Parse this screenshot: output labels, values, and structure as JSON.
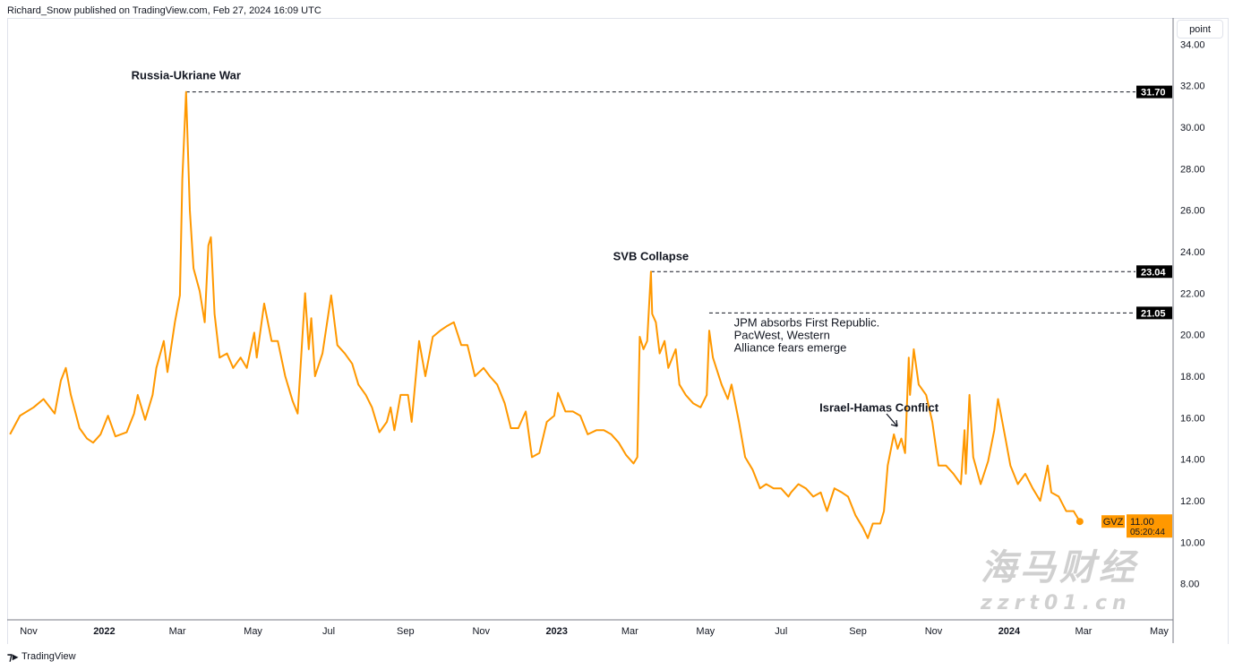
{
  "header": {
    "published": "Richard_Snow published on TradingView.com, Feb 27, 2024 16:09 UTC"
  },
  "footer": {
    "brand": "TradingView",
    "logo_icon": "tradingview-logo-icon"
  },
  "scale_button": "point",
  "watermark": {
    "logo_text": "海马财经",
    "site": "zzrt01.cn"
  },
  "colors": {
    "line": "#ff9800",
    "level_label_bg": "#000000",
    "price_label_bg": "#ff9800"
  },
  "chart_data": {
    "type": "line",
    "series": [
      {
        "name": "GVZ",
        "points": [
          [
            "2021-10-17",
            15.2
          ],
          [
            "2021-10-25",
            16.1
          ],
          [
            "2021-11-05",
            16.5
          ],
          [
            "2021-11-13",
            16.9
          ],
          [
            "2021-11-22",
            16.2
          ],
          [
            "2021-11-27",
            17.8
          ],
          [
            "2021-12-01",
            18.4
          ],
          [
            "2021-12-05",
            17.1
          ],
          [
            "2021-12-12",
            15.5
          ],
          [
            "2021-12-18",
            15.0
          ],
          [
            "2021-12-23",
            14.8
          ],
          [
            "2021-12-29",
            15.2
          ],
          [
            "2022-01-04",
            16.1
          ],
          [
            "2022-01-10",
            15.1
          ],
          [
            "2022-01-19",
            15.3
          ],
          [
            "2022-01-25",
            16.2
          ],
          [
            "2022-01-28",
            17.1
          ],
          [
            "2022-02-03",
            15.9
          ],
          [
            "2022-02-09",
            17.1
          ],
          [
            "2022-02-12",
            18.4
          ],
          [
            "2022-02-18",
            19.7
          ],
          [
            "2022-02-21",
            18.2
          ],
          [
            "2022-02-27",
            20.6
          ],
          [
            "2022-03-03",
            21.9
          ],
          [
            "2022-03-05",
            27.5
          ],
          [
            "2022-03-08",
            31.7
          ],
          [
            "2022-03-11",
            26.0
          ],
          [
            "2022-03-14",
            23.2
          ],
          [
            "2022-03-19",
            22.1
          ],
          [
            "2022-03-23",
            20.6
          ],
          [
            "2022-03-26",
            24.3
          ],
          [
            "2022-03-28",
            24.7
          ],
          [
            "2022-03-31",
            21.0
          ],
          [
            "2022-04-04",
            18.9
          ],
          [
            "2022-04-10",
            19.1
          ],
          [
            "2022-04-15",
            18.4
          ],
          [
            "2022-04-21",
            18.9
          ],
          [
            "2022-04-26",
            18.4
          ],
          [
            "2022-05-02",
            20.1
          ],
          [
            "2022-05-04",
            18.9
          ],
          [
            "2022-05-10",
            21.5
          ],
          [
            "2022-05-16",
            19.7
          ],
          [
            "2022-05-21",
            19.7
          ],
          [
            "2022-05-27",
            18.0
          ],
          [
            "2022-06-02",
            16.8
          ],
          [
            "2022-06-06",
            16.2
          ],
          [
            "2022-06-12",
            22.0
          ],
          [
            "2022-06-15",
            19.3
          ],
          [
            "2022-06-17",
            20.8
          ],
          [
            "2022-06-20",
            18.0
          ],
          [
            "2022-06-26",
            19.1
          ],
          [
            "2022-07-03",
            21.9
          ],
          [
            "2022-07-08",
            19.5
          ],
          [
            "2022-07-14",
            19.1
          ],
          [
            "2022-07-20",
            18.6
          ],
          [
            "2022-07-25",
            17.6
          ],
          [
            "2022-07-31",
            17.1
          ],
          [
            "2022-08-05",
            16.5
          ],
          [
            "2022-08-11",
            15.3
          ],
          [
            "2022-08-17",
            15.8
          ],
          [
            "2022-08-20",
            16.5
          ],
          [
            "2022-08-23",
            15.4
          ],
          [
            "2022-08-28",
            17.1
          ],
          [
            "2022-09-03",
            17.1
          ],
          [
            "2022-09-06",
            15.8
          ],
          [
            "2022-09-12",
            19.7
          ],
          [
            "2022-09-17",
            18.0
          ],
          [
            "2022-09-23",
            19.9
          ],
          [
            "2022-09-29",
            20.2
          ],
          [
            "2022-10-04",
            20.4
          ],
          [
            "2022-10-10",
            20.6
          ],
          [
            "2022-10-16",
            19.5
          ],
          [
            "2022-10-21",
            19.5
          ],
          [
            "2022-10-27",
            18.0
          ],
          [
            "2022-11-03",
            18.4
          ],
          [
            "2022-11-08",
            18.0
          ],
          [
            "2022-11-14",
            17.6
          ],
          [
            "2022-11-20",
            16.7
          ],
          [
            "2022-11-25",
            15.5
          ],
          [
            "2022-12-01",
            15.5
          ],
          [
            "2022-12-07",
            16.3
          ],
          [
            "2022-12-12",
            14.1
          ],
          [
            "2022-12-18",
            14.3
          ],
          [
            "2022-12-24",
            15.8
          ],
          [
            "2022-12-30",
            16.1
          ],
          [
            "2023-01-02",
            17.2
          ],
          [
            "2023-01-08",
            16.3
          ],
          [
            "2023-01-14",
            16.3
          ],
          [
            "2023-01-20",
            16.1
          ],
          [
            "2023-01-26",
            15.2
          ],
          [
            "2023-02-02",
            15.4
          ],
          [
            "2023-02-08",
            15.4
          ],
          [
            "2023-02-14",
            15.2
          ],
          [
            "2023-02-20",
            14.8
          ],
          [
            "2023-02-26",
            14.2
          ],
          [
            "2023-03-04",
            13.8
          ],
          [
            "2023-03-07",
            14.1
          ],
          [
            "2023-03-09",
            19.9
          ],
          [
            "2023-03-12",
            19.3
          ],
          [
            "2023-03-15",
            19.7
          ],
          [
            "2023-03-18",
            23.04
          ],
          [
            "2023-03-19",
            21.0
          ],
          [
            "2023-03-22",
            20.6
          ],
          [
            "2023-03-25",
            19.1
          ],
          [
            "2023-03-29",
            19.7
          ],
          [
            "2023-04-01",
            18.4
          ],
          [
            "2023-04-07",
            19.3
          ],
          [
            "2023-04-10",
            17.6
          ],
          [
            "2023-04-15",
            17.1
          ],
          [
            "2023-04-21",
            16.7
          ],
          [
            "2023-04-27",
            16.5
          ],
          [
            "2023-05-02",
            17.1
          ],
          [
            "2023-05-04",
            20.2
          ],
          [
            "2023-05-07",
            18.9
          ],
          [
            "2023-05-14",
            17.6
          ],
          [
            "2023-05-19",
            16.9
          ],
          [
            "2023-05-22",
            17.6
          ],
          [
            "2023-05-28",
            15.8
          ],
          [
            "2023-06-02",
            14.1
          ],
          [
            "2023-06-08",
            13.5
          ],
          [
            "2023-06-14",
            12.6
          ],
          [
            "2023-06-19",
            12.8
          ],
          [
            "2023-06-25",
            12.6
          ],
          [
            "2023-07-01",
            12.6
          ],
          [
            "2023-07-07",
            12.2
          ],
          [
            "2023-07-09",
            12.4
          ],
          [
            "2023-07-15",
            12.8
          ],
          [
            "2023-07-21",
            12.6
          ],
          [
            "2023-07-27",
            12.2
          ],
          [
            "2023-08-02",
            12.4
          ],
          [
            "2023-08-07",
            11.5
          ],
          [
            "2023-08-13",
            12.6
          ],
          [
            "2023-08-19",
            12.4
          ],
          [
            "2023-08-24",
            12.2
          ],
          [
            "2023-08-30",
            11.3
          ],
          [
            "2023-09-05",
            10.7
          ],
          [
            "2023-09-09",
            10.2
          ],
          [
            "2023-09-13",
            10.9
          ],
          [
            "2023-09-19",
            10.9
          ],
          [
            "2023-09-22",
            11.5
          ],
          [
            "2023-09-25",
            13.7
          ],
          [
            "2023-09-30",
            15.2
          ],
          [
            "2023-10-03",
            14.5
          ],
          [
            "2023-10-06",
            15.0
          ],
          [
            "2023-10-09",
            14.3
          ],
          [
            "2023-10-12",
            18.9
          ],
          [
            "2023-10-13",
            17.1
          ],
          [
            "2023-10-16",
            19.3
          ],
          [
            "2023-10-20",
            17.6
          ],
          [
            "2023-10-26",
            17.1
          ],
          [
            "2023-10-31",
            15.8
          ],
          [
            "2023-11-05",
            13.7
          ],
          [
            "2023-11-11",
            13.7
          ],
          [
            "2023-11-17",
            13.3
          ],
          [
            "2023-11-23",
            12.8
          ],
          [
            "2023-11-26",
            15.4
          ],
          [
            "2023-11-27",
            13.3
          ],
          [
            "2023-11-30",
            17.1
          ],
          [
            "2023-12-03",
            14.1
          ],
          [
            "2023-12-09",
            12.8
          ],
          [
            "2023-12-15",
            13.9
          ],
          [
            "2023-12-20",
            15.4
          ],
          [
            "2023-12-23",
            16.9
          ],
          [
            "2023-12-29",
            15.0
          ],
          [
            "2024-01-02",
            13.7
          ],
          [
            "2024-01-08",
            12.8
          ],
          [
            "2024-01-14",
            13.3
          ],
          [
            "2024-01-20",
            12.6
          ],
          [
            "2024-01-26",
            12.0
          ],
          [
            "2024-02-01",
            13.7
          ],
          [
            "2024-02-04",
            12.4
          ],
          [
            "2024-02-10",
            12.2
          ],
          [
            "2024-02-16",
            11.5
          ],
          [
            "2024-02-22",
            11.5
          ],
          [
            "2024-02-27",
            11.0
          ]
        ]
      }
    ],
    "x_ticks": [
      {
        "label": "Nov",
        "date": "2021-11-01"
      },
      {
        "label": "2022",
        "date": "2022-01-01",
        "bold": true
      },
      {
        "label": "Mar",
        "date": "2022-03-01"
      },
      {
        "label": "May",
        "date": "2022-05-01"
      },
      {
        "label": "Jul",
        "date": "2022-07-01"
      },
      {
        "label": "Sep",
        "date": "2022-09-01"
      },
      {
        "label": "Nov",
        "date": "2022-11-01"
      },
      {
        "label": "2023",
        "date": "2023-01-01",
        "bold": true
      },
      {
        "label": "Mar",
        "date": "2023-03-01"
      },
      {
        "label": "May",
        "date": "2023-05-01"
      },
      {
        "label": "Jul",
        "date": "2023-07-01"
      },
      {
        "label": "Sep",
        "date": "2023-09-01"
      },
      {
        "label": "Nov",
        "date": "2023-11-01"
      },
      {
        "label": "2024",
        "date": "2024-01-01",
        "bold": true
      },
      {
        "label": "Mar",
        "date": "2024-03-01"
      },
      {
        "label": "May",
        "date": "2024-05-01"
      }
    ],
    "y_ticks": [
      "34.00",
      "32.00",
      "30.00",
      "28.00",
      "26.00",
      "24.00",
      "22.00",
      "20.00",
      "18.00",
      "16.00",
      "14.00",
      "12.00",
      "10.00",
      "8.00"
    ],
    "ylim": [
      7,
      34.5
    ],
    "xlim": [
      "2021-10-13",
      "2024-04-15"
    ],
    "levels": [
      {
        "value": 31.7,
        "label": "31.70",
        "from": "2022-03-08"
      },
      {
        "value": 23.04,
        "label": "23.04",
        "from": "2023-03-18"
      },
      {
        "value": 21.05,
        "label": "21.05",
        "from": "2023-05-04"
      }
    ],
    "annotations": [
      {
        "text": [
          "Russia-Ukriane War"
        ],
        "date": "2022-03-08",
        "value": 32.3,
        "bold": true,
        "anchor": "middle"
      },
      {
        "text": [
          "SVB Collapse"
        ],
        "date": "2023-03-18",
        "value": 23.6,
        "bold": true,
        "anchor": "middle"
      },
      {
        "text": [
          "JPM absorbs First Republic.",
          "PacWest, Western",
          "Alliance fears emerge"
        ],
        "date": "2023-05-24",
        "value": 20.4,
        "bold": false,
        "anchor": "start"
      },
      {
        "text": [
          "Israel-Hamas Conflict"
        ],
        "date": "2023-08-01",
        "value": 16.3,
        "bold": true,
        "anchor": "start"
      }
    ],
    "last": {
      "symbol": "GVZ",
      "value": "11.00",
      "countdown": "05:20:44"
    }
  }
}
